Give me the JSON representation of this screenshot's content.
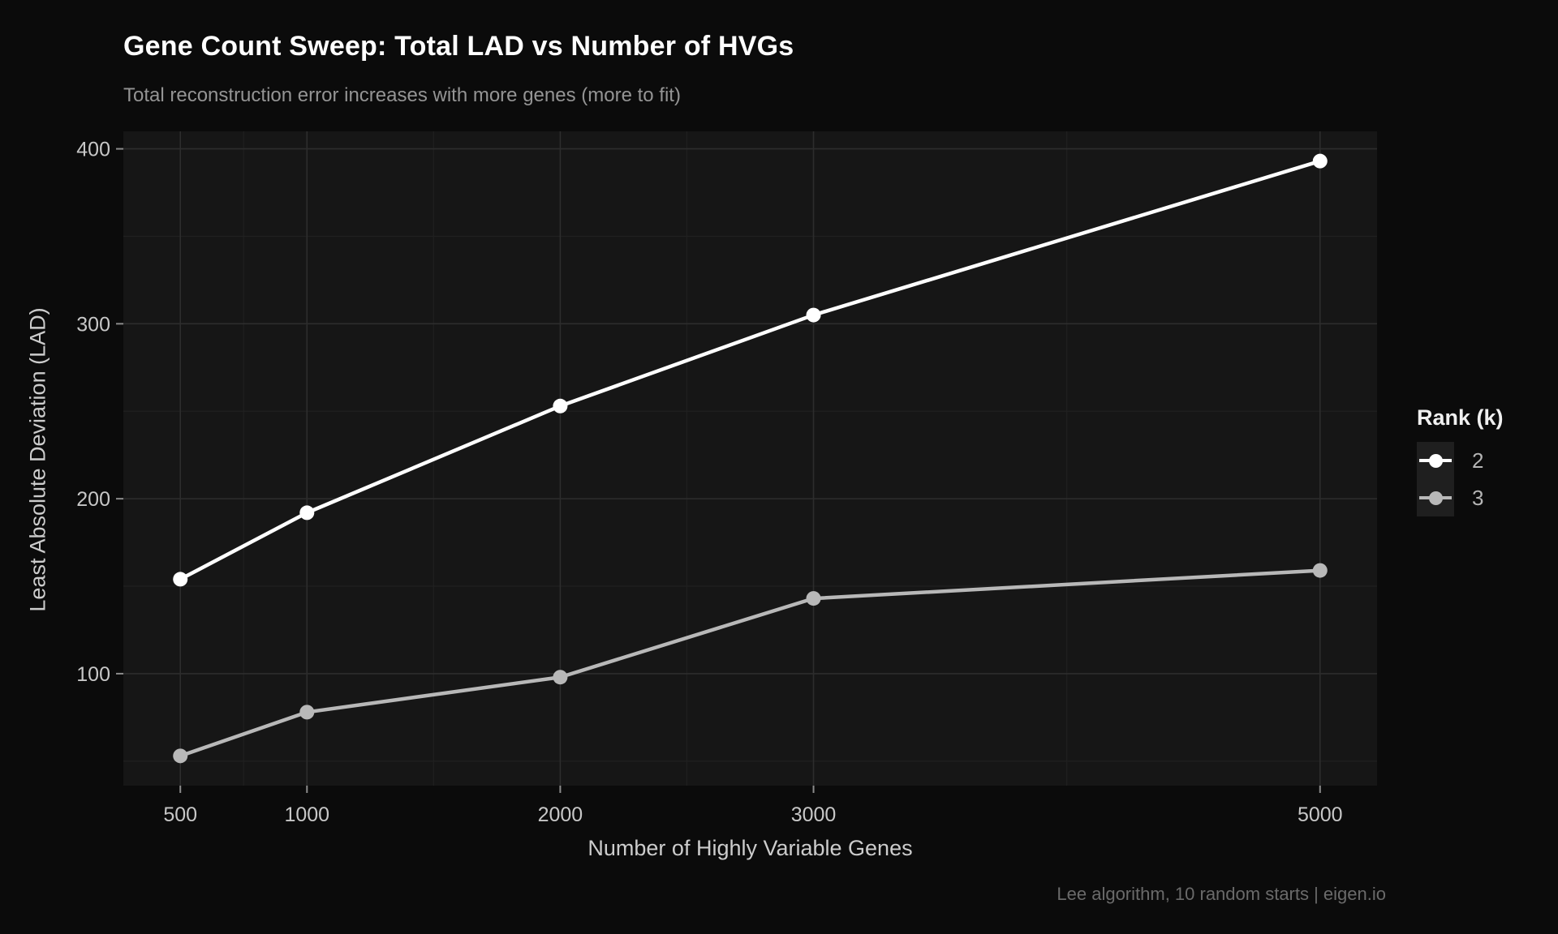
{
  "theme": {
    "outer_bg": "#0b0b0b",
    "panel_bg": "#161616",
    "grid_major": "#2d2d2d",
    "grid_minor": "#202020",
    "tick_mark": "#8c8c8c",
    "tick_label": "#c7c7c7",
    "axis_title": "#cccccc",
    "title": "#ffffff",
    "subtitle": "#949494",
    "caption": "#6a6a6a",
    "legend_title": "#f0f0f0",
    "legend_label": "#b5b5b5",
    "legend_key_bg": "#1f1f1f"
  },
  "chart_data": {
    "type": "line",
    "title": "Gene Count Sweep: Total LAD vs Number of HVGs",
    "subtitle": "Total reconstruction error increases with more genes (more to fit)",
    "caption": "Lee algorithm, 10 random starts | eigen.io",
    "xlabel": "Number of Highly Variable Genes",
    "ylabel": "Least Absolute Deviation (LAD)",
    "legend_title": "Rank (k)",
    "legend_position": "right",
    "grid": true,
    "x": [
      500,
      1000,
      2000,
      3000,
      5000
    ],
    "series": [
      {
        "name": "2",
        "color": "#ffffff",
        "values": [
          154,
          192,
          253,
          305,
          393
        ]
      },
      {
        "name": "3",
        "color": "#b8b8b8",
        "values": [
          53,
          78,
          98,
          143,
          159
        ]
      }
    ],
    "x_ticks": [
      500,
      1000,
      2000,
      3000,
      5000
    ],
    "y_ticks": [
      100,
      200,
      300,
      400
    ],
    "x_minor_ticks": [
      750,
      1500,
      2500,
      4000
    ],
    "y_minor_ticks": [
      50,
      150,
      250,
      350
    ],
    "xlim": [
      275,
      5225
    ],
    "ylim": [
      36,
      410
    ]
  }
}
